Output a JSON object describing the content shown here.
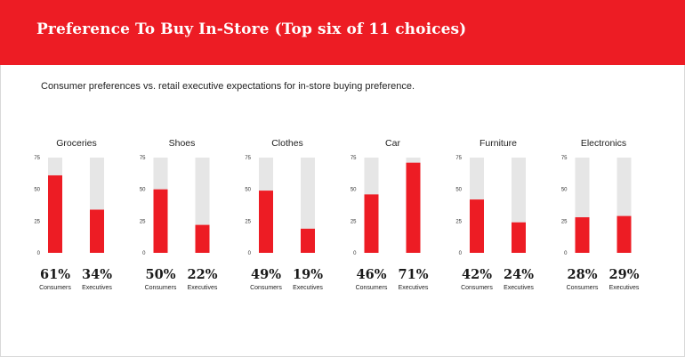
{
  "title": "Preference To Buy In-Store (Top six of 11 choices)",
  "subtitle": "Consumer preferences vs. retail executive expectations for in-store buying preference.",
  "colors": {
    "accent": "#ed1c24",
    "track": "#e6e6e6"
  },
  "chart_data": {
    "type": "bar",
    "ylim": [
      0,
      75
    ],
    "yticks": [
      "75",
      "50",
      "25",
      "0"
    ],
    "groups": [
      "Consumers",
      "Executives"
    ],
    "categories": [
      "Groceries",
      "Shoes",
      "Clothes",
      "Car",
      "Furniture",
      "Electronics"
    ],
    "series": [
      {
        "name": "Consumers",
        "values": [
          61,
          50,
          49,
          46,
          42,
          28
        ],
        "labels": [
          "61%",
          "50%",
          "49%",
          "46%",
          "42%",
          "28%"
        ]
      },
      {
        "name": "Executives",
        "values": [
          34,
          22,
          19,
          71,
          24,
          29
        ],
        "labels": [
          "34%",
          "22%",
          "19%",
          "71%",
          "24%",
          "29%"
        ]
      }
    ]
  }
}
